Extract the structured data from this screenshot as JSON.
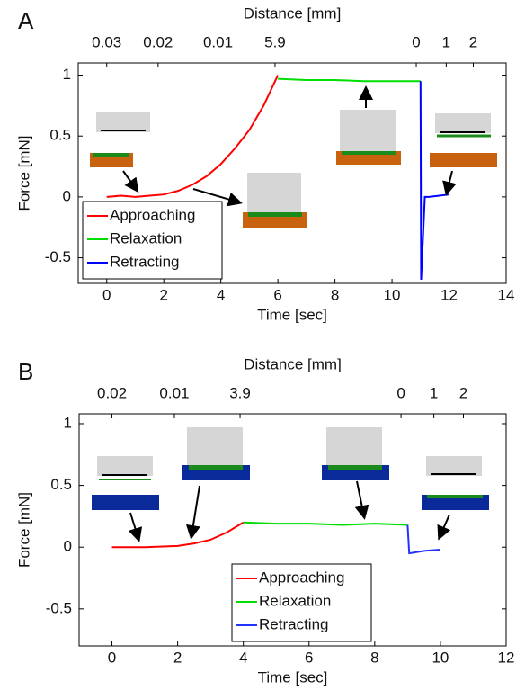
{
  "chart_data": [
    {
      "type": "line",
      "panel": "A",
      "xlabel": "Time [sec]",
      "ylabel": "Force [mN]",
      "top_axis": {
        "label": "Distance [mm]",
        "ticks": [
          {
            "value": 0,
            "label": "0.03"
          },
          {
            "value": 1.8,
            "label": "0.02"
          },
          {
            "value": 3.9,
            "label": "0.01"
          },
          5.9,
          {
            "value": 10.85,
            "label": "0"
          },
          {
            "value": 11.9,
            "label": "1"
          },
          {
            "value": 12.85,
            "label": "2"
          }
        ]
      },
      "xlim": [
        -1,
        14
      ],
      "xticks": [
        0,
        2,
        4,
        6,
        8,
        10,
        12,
        14
      ],
      "ylim": [
        -0.71,
        1.1
      ],
      "yticks": [
        -0.5,
        0,
        0.5,
        1
      ],
      "legend": "lower left",
      "series": [
        {
          "name": "Approaching",
          "color": "#ff0000",
          "x": [
            0,
            0.5,
            1,
            1.5,
            2,
            2.5,
            3,
            3.5,
            4,
            4.5,
            5,
            5.5,
            6
          ],
          "values": [
            0,
            0.01,
            0,
            0.01,
            0.02,
            0.05,
            0.1,
            0.17,
            0.27,
            0.4,
            0.55,
            0.75,
            1.0
          ]
        },
        {
          "name": "Relaxation",
          "color": "#00dd00",
          "x": [
            6,
            7,
            8,
            9,
            10,
            11
          ],
          "values": [
            0.97,
            0.96,
            0.96,
            0.95,
            0.95,
            0.95
          ]
        },
        {
          "name": "Retracting",
          "color": "#0000ff",
          "x": [
            11,
            11.02,
            11.15,
            11.3,
            12
          ],
          "values": [
            0.95,
            -0.68,
            0,
            0,
            0.02
          ]
        }
      ]
    },
    {
      "type": "line",
      "panel": "B",
      "xlabel": "Time [sec]",
      "ylabel": "Force [mN]",
      "top_axis": {
        "label": "Distance [mm]",
        "ticks": [
          {
            "value": 0,
            "label": "0.02"
          },
          {
            "value": 1.9,
            "label": "0.01"
          },
          3.9,
          {
            "value": 8.8,
            "label": "0"
          },
          {
            "value": 9.8,
            "label": "1"
          },
          {
            "value": 10.7,
            "label": "2"
          }
        ]
      },
      "xlim": [
        -1,
        12
      ],
      "xticks": [
        0,
        2,
        4,
        6,
        8,
        10,
        12
      ],
      "ylim": [
        -0.8,
        1.08
      ],
      "yticks": [
        -0.5,
        0,
        0.5,
        1
      ],
      "legend": "lower center",
      "series": [
        {
          "name": "Approaching",
          "color": "#ff0000",
          "x": [
            0,
            1,
            2,
            2.5,
            3,
            3.5,
            4
          ],
          "values": [
            0,
            0,
            0.01,
            0.03,
            0.06,
            0.12,
            0.2
          ]
        },
        {
          "name": "Relaxation",
          "color": "#00dd00",
          "x": [
            4,
            5,
            6,
            7,
            8,
            9
          ],
          "values": [
            0.2,
            0.19,
            0.19,
            0.18,
            0.19,
            0.18
          ]
        },
        {
          "name": "Retracting",
          "color": "#2233ff",
          "x": [
            9,
            9.05,
            9.5,
            10
          ],
          "values": [
            0.18,
            -0.05,
            -0.03,
            -0.02
          ]
        }
      ]
    }
  ]
}
